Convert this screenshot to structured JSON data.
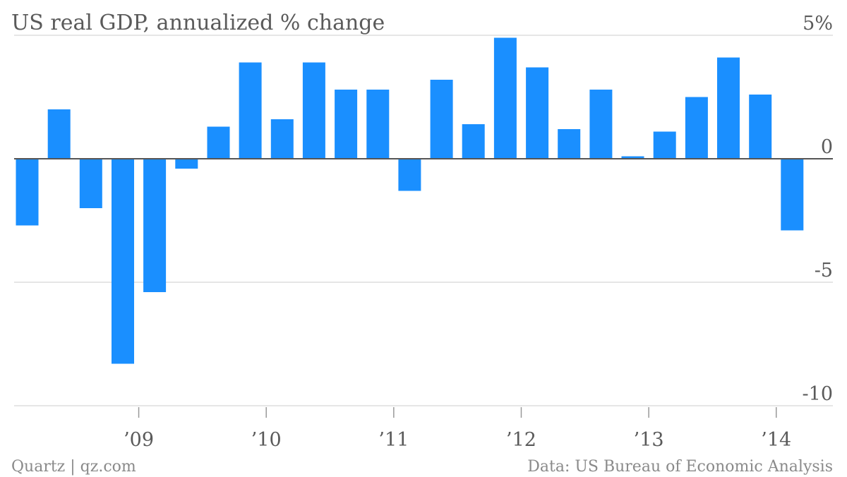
{
  "chart_data": {
    "type": "bar",
    "title": "US real GDP, annualized % change",
    "ylim": [
      -10,
      5
    ],
    "yticks": [
      {
        "value": 5,
        "label": "5%"
      },
      {
        "value": 0,
        "label": "0"
      },
      {
        "value": -5,
        "label": "-5"
      },
      {
        "value": -10,
        "label": "-10"
      }
    ],
    "xticks": [
      "’09",
      "’10",
      "’11",
      "’12",
      "’13",
      "’14"
    ],
    "grid": true,
    "bar_color": "#1a8fff",
    "categories": [
      "2008 Q1",
      "2008 Q2",
      "2008 Q3",
      "2008 Q4",
      "2009 Q1",
      "2009 Q2",
      "2009 Q3",
      "2009 Q4",
      "2010 Q1",
      "2010 Q2",
      "2010 Q3",
      "2010 Q4",
      "2011 Q1",
      "2011 Q2",
      "2011 Q3",
      "2011 Q4",
      "2012 Q1",
      "2012 Q2",
      "2012 Q3",
      "2012 Q4",
      "2013 Q1",
      "2013 Q2",
      "2013 Q3",
      "2013 Q4",
      "2014 Q1"
    ],
    "values": [
      -2.7,
      2.0,
      -2.0,
      -8.3,
      -5.4,
      -0.4,
      1.3,
      3.9,
      1.6,
      3.9,
      2.8,
      2.8,
      -1.3,
      3.2,
      1.4,
      4.9,
      3.7,
      1.2,
      2.8,
      0.1,
      1.1,
      2.5,
      4.1,
      2.6,
      -2.9
    ]
  },
  "footer": {
    "source_left": "Quartz | qz.com",
    "source_right": "Data: US Bureau of Economic Analysis"
  }
}
